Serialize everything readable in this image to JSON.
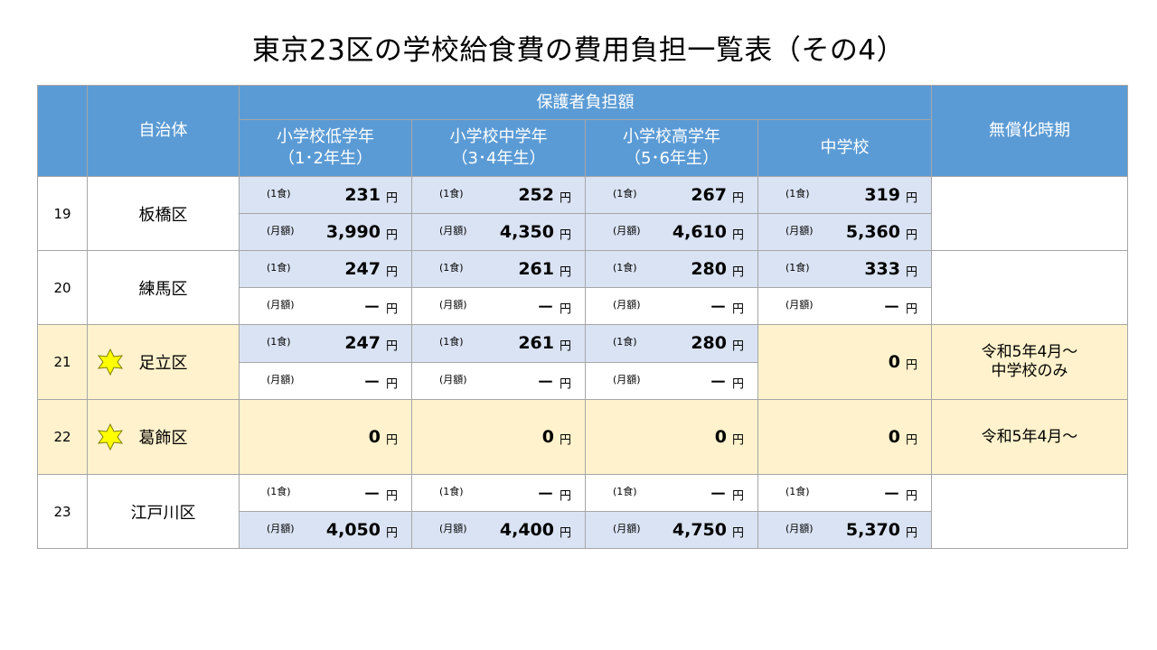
{
  "title": "東京23区の学校給食費の費用負担一覧表（その4）",
  "header": {
    "municipality": "自治体",
    "guardian_burden": "保護者負担額",
    "lower_elem_1": "小学校低学年",
    "lower_elem_2": "（1･2年生）",
    "mid_elem_1": "小学校中学年",
    "mid_elem_2": "（3･4年生）",
    "upper_elem_1": "小学校高学年",
    "upper_elem_2": "（5･6年生）",
    "junior_high": "中学校",
    "free_timing": "無償化時期"
  },
  "labels": {
    "meal": "(1食)",
    "monthly": "(月額)",
    "yen": "円"
  },
  "rows": [
    {
      "no": "19",
      "name": "板橋区",
      "meal": [
        "231",
        "252",
        "267",
        "319"
      ],
      "monthly": [
        "3,990",
        "4,350",
        "4,610",
        "5,360"
      ],
      "timing": ""
    },
    {
      "no": "20",
      "name": "練馬区",
      "meal": [
        "247",
        "261",
        "280",
        "333"
      ],
      "monthly": [
        "－",
        "－",
        "－",
        "－"
      ],
      "timing": ""
    },
    {
      "no": "21",
      "name": "足立区",
      "meal": [
        "247",
        "261",
        "280"
      ],
      "monthly": [
        "－",
        "－",
        "－"
      ],
      "junior_high": "0",
      "timing_1": "令和5年4月～",
      "timing_2": "中学校のみ"
    },
    {
      "no": "22",
      "name": "葛飾区",
      "values": [
        "0",
        "0",
        "0",
        "0"
      ],
      "timing": "令和5年4月～"
    },
    {
      "no": "23",
      "name": "江戸川区",
      "meal": [
        "－",
        "－",
        "－",
        "－"
      ],
      "monthly": [
        "4,050",
        "4,400",
        "4,750",
        "5,370"
      ],
      "timing": ""
    }
  ],
  "colors": {
    "header": "#5b9bd5",
    "row_blue": "#dae3f3",
    "row_cream": "#fff2cc",
    "star": "#ffff00"
  },
  "icons": {
    "star": "star-icon"
  }
}
